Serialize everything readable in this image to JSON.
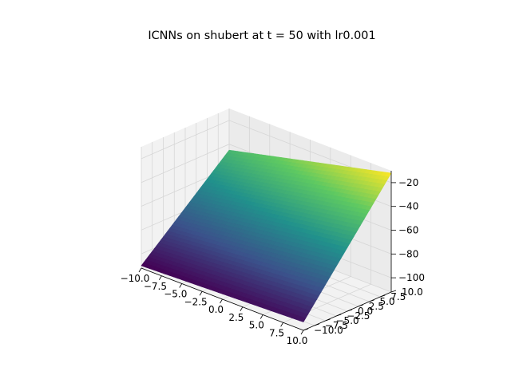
{
  "chart_data": {
    "type": "surface3d",
    "title": "ICNNs on shubert at t = 50 with lr0.001",
    "xlabel": "",
    "ylabel": "",
    "zlabel": "",
    "xlim": [
      -10,
      10
    ],
    "ylim": [
      -10,
      10
    ],
    "zlim": [
      -112,
      -10
    ],
    "x_ticks": [
      "−10.0",
      "−7.5",
      "−5.0",
      "−2.5",
      "0.0",
      "2.5",
      "5.0",
      "7.5",
      "10.0"
    ],
    "y_ticks": [
      "−10.0",
      "−7.5",
      "−5.0",
      "−2.5",
      "0.0",
      "2.5",
      "5.0",
      "7.5",
      "10.0"
    ],
    "z_ticks": [
      "−100",
      "−80",
      "−60",
      "−40",
      "−20"
    ],
    "surface_corners": [
      {
        "x": -10,
        "y": -10,
        "z": -110
      },
      {
        "x": 10,
        "y": -10,
        "z": -105
      },
      {
        "x": -10,
        "y": 10,
        "z": -45
      },
      {
        "x": 10,
        "y": 10,
        "z": -12
      }
    ],
    "colormap": [
      "#440154",
      "#3b528b",
      "#21918c",
      "#5ec962",
      "#fde725"
    ],
    "grid": true
  }
}
